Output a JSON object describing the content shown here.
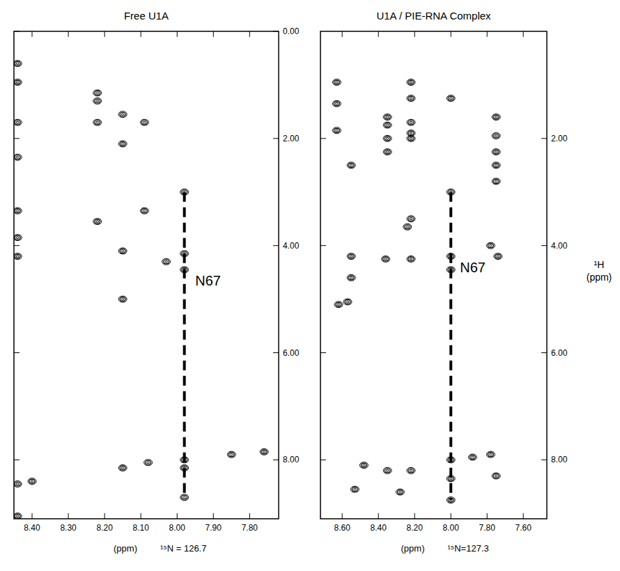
{
  "chart_data": [
    {
      "type": "scatter",
      "title": "Free U1A",
      "x_label": "(ppm)",
      "plane_label": "¹⁵N = 126.7",
      "xlim": [
        8.45,
        7.72
      ],
      "ylim": [
        0,
        9.1
      ],
      "xticks": [
        {
          "value": 8.4,
          "label": "8.40"
        },
        {
          "value": 8.3,
          "label": "8.30"
        },
        {
          "value": 8.2,
          "label": "8.20"
        },
        {
          "value": 8.1,
          "label": "8.10"
        },
        {
          "value": 8.0,
          "label": "8.00"
        },
        {
          "value": 7.9,
          "label": "7.90"
        },
        {
          "value": 7.8,
          "label": "7.80"
        }
      ],
      "yticks": [
        {
          "value": 0,
          "label": "0.00"
        },
        {
          "value": 2,
          "label": "2.00"
        },
        {
          "value": 4,
          "label": "4.00"
        },
        {
          "value": 6,
          "label": "6.00"
        },
        {
          "value": 8,
          "label": "8.00"
        }
      ],
      "series": [
        {
          "type": "scatter",
          "color": "#000000",
          "marker": "contour",
          "x": [
            8.44,
            8.44,
            8.44,
            8.44,
            8.44,
            8.44,
            8.44,
            8.44,
            8.44,
            8.22,
            8.22,
            8.22,
            8.22,
            8.15,
            8.15,
            8.15,
            8.15,
            8.15,
            8.09,
            8.09,
            8.08,
            7.98,
            7.98,
            7.98,
            7.98,
            7.98,
            7.98,
            7.85,
            7.76,
            8.4,
            8.03
          ],
          "y": [
            0.6,
            0.95,
            1.7,
            2.35,
            3.35,
            3.85,
            4.2,
            8.45,
            9.05,
            1.15,
            1.3,
            1.7,
            3.55,
            1.55,
            2.1,
            4.1,
            5.0,
            8.15,
            1.7,
            3.35,
            8.05,
            3.0,
            4.15,
            4.45,
            8.0,
            8.15,
            8.7,
            7.9,
            7.85,
            8.4,
            4.3
          ]
        },
        {
          "type": "line",
          "color": "#000000",
          "line_style": "dashed",
          "x": [
            7.98,
            7.98
          ],
          "y": [
            3.0,
            8.7
          ]
        }
      ],
      "annotations": [
        {
          "text": "N67",
          "x": 7.95,
          "y": 4.75
        }
      ]
    },
    {
      "type": "scatter",
      "title": "U1A / PIE-RNA Complex",
      "x_label": "(ppm)",
      "plane_label": "¹⁵N=127.3",
      "y_label": "¹H (ppm)",
      "xlim": [
        8.72,
        7.47
      ],
      "ylim": [
        0,
        9.1
      ],
      "xticks": [
        {
          "value": 8.6,
          "label": "8.60"
        },
        {
          "value": 8.4,
          "label": "8.40"
        },
        {
          "value": 8.2,
          "label": "8.20"
        },
        {
          "value": 8.0,
          "label": "8.00"
        },
        {
          "value": 7.8,
          "label": "7.80"
        },
        {
          "value": 7.6,
          "label": "7.60"
        }
      ],
      "yticks": [
        {
          "value": 2,
          "label": "2.00"
        },
        {
          "value": 4,
          "label": "4.00"
        },
        {
          "value": 6,
          "label": "6.00"
        },
        {
          "value": 8,
          "label": "8.00"
        }
      ],
      "series": [
        {
          "type": "scatter",
          "color": "#000000",
          "marker": "contour",
          "x": [
            8.63,
            8.63,
            8.63,
            8.55,
            8.55,
            8.55,
            8.57,
            8.62,
            8.53,
            8.35,
            8.35,
            8.35,
            8.35,
            8.36,
            8.35,
            8.22,
            8.22,
            8.22,
            8.22,
            8.22,
            8.22,
            8.24,
            8.22,
            8.22,
            8.0,
            8.0,
            8.0,
            8.0,
            8.0,
            8.0,
            8.0,
            7.75,
            7.75,
            7.75,
            7.75,
            7.75,
            7.78,
            7.74,
            7.88,
            7.78,
            7.75,
            8.28,
            8.48
          ],
          "y": [
            0.95,
            1.35,
            1.85,
            2.5,
            4.2,
            4.6,
            5.05,
            5.1,
            8.55,
            1.6,
            1.75,
            2.0,
            2.25,
            4.25,
            8.2,
            0.95,
            1.25,
            1.7,
            1.9,
            2.0,
            3.5,
            3.65,
            4.25,
            8.2,
            1.25,
            3.0,
            4.2,
            4.45,
            8.0,
            8.35,
            8.75,
            1.6,
            1.95,
            2.25,
            2.5,
            2.8,
            4.0,
            4.2,
            7.95,
            7.9,
            8.3,
            8.6,
            8.1
          ]
        },
        {
          "type": "line",
          "color": "#000000",
          "line_style": "dashed",
          "x": [
            8.0,
            8.0
          ],
          "y": [
            3.0,
            8.75
          ]
        }
      ],
      "annotations": [
        {
          "text": "N67",
          "x": 7.95,
          "y": 4.5
        }
      ]
    }
  ]
}
